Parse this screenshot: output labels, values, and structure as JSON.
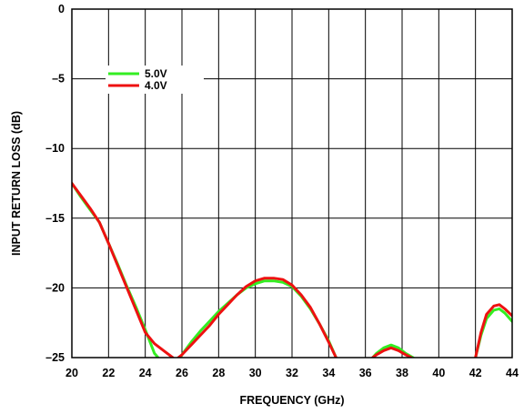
{
  "chart_data": {
    "type": "line",
    "title": "",
    "xlabel": "FREQUENCY (GHz)",
    "ylabel": "INPUT RETURN LOSS (dB)",
    "xlim": [
      20,
      44
    ],
    "ylim": [
      -25,
      0
    ],
    "xticks": [
      20,
      22,
      24,
      26,
      28,
      30,
      32,
      34,
      36,
      38,
      40,
      42,
      44
    ],
    "yticks": [
      0,
      -5,
      -10,
      -15,
      -20,
      -25
    ],
    "ytick_labels": [
      "0",
      "–5",
      "–10",
      "–15",
      "–20",
      "–25"
    ],
    "grid": true,
    "legend_position": "upper-left",
    "series": [
      {
        "name": "5.0V",
        "color": "#33ee22",
        "segments": [
          [
            [
              20,
              -12.5
            ],
            [
              20.5,
              -13.5
            ],
            [
              21,
              -14.4
            ],
            [
              21.5,
              -15.3
            ],
            [
              22,
              -16.8
            ],
            [
              22.5,
              -18.3
            ],
            [
              23,
              -19.9
            ],
            [
              23.5,
              -21.4
            ],
            [
              24,
              -23.0
            ],
            [
              24.5,
              -24.7
            ],
            [
              24.7,
              -25.0
            ]
          ],
          [
            [
              25.9,
              -25.0
            ],
            [
              26,
              -24.8
            ],
            [
              26.5,
              -23.9
            ],
            [
              27,
              -23.1
            ],
            [
              27.5,
              -22.4
            ],
            [
              28,
              -21.7
            ],
            [
              28.5,
              -21.1
            ],
            [
              29,
              -20.5
            ],
            [
              29.5,
              -20.0
            ],
            [
              30,
              -19.7
            ],
            [
              30.5,
              -19.5
            ],
            [
              31,
              -19.5
            ],
            [
              31.5,
              -19.6
            ],
            [
              32,
              -19.9
            ],
            [
              32.5,
              -20.6
            ],
            [
              33,
              -21.5
            ],
            [
              33.5,
              -22.6
            ],
            [
              34,
              -23.8
            ],
            [
              34.4,
              -25.0
            ]
          ],
          [
            [
              36.4,
              -25.0
            ],
            [
              36.6,
              -24.7
            ],
            [
              37,
              -24.3
            ],
            [
              37.4,
              -24.1
            ],
            [
              37.8,
              -24.3
            ],
            [
              38.2,
              -24.7
            ],
            [
              38.6,
              -25.0
            ]
          ],
          [
            [
              42.0,
              -25.0
            ],
            [
              42.3,
              -23.4
            ],
            [
              42.6,
              -22.2
            ],
            [
              43.0,
              -21.6
            ],
            [
              43.3,
              -21.5
            ],
            [
              43.6,
              -21.8
            ],
            [
              44,
              -22.4
            ]
          ]
        ]
      },
      {
        "name": "4.0V",
        "color": "#ee1111",
        "segments": [
          [
            [
              20,
              -12.5
            ],
            [
              20.5,
              -13.4
            ],
            [
              21,
              -14.3
            ],
            [
              21.5,
              -15.3
            ],
            [
              22,
              -16.8
            ],
            [
              22.5,
              -18.4
            ],
            [
              23,
              -20.0
            ],
            [
              23.5,
              -21.6
            ],
            [
              24,
              -23.2
            ],
            [
              24.5,
              -24.0
            ],
            [
              25,
              -24.5
            ],
            [
              25.5,
              -25.0
            ]
          ],
          [
            [
              25.8,
              -25.0
            ],
            [
              26,
              -24.8
            ],
            [
              26.5,
              -24.1
            ],
            [
              27,
              -23.4
            ],
            [
              27.5,
              -22.7
            ],
            [
              28,
              -21.9
            ],
            [
              28.5,
              -21.2
            ],
            [
              29,
              -20.5
            ],
            [
              29.5,
              -19.9
            ],
            [
              30,
              -19.5
            ],
            [
              30.5,
              -19.3
            ],
            [
              31,
              -19.3
            ],
            [
              31.5,
              -19.4
            ],
            [
              32,
              -19.8
            ],
            [
              32.5,
              -20.5
            ],
            [
              33,
              -21.4
            ],
            [
              33.5,
              -22.6
            ],
            [
              34,
              -23.9
            ],
            [
              34.4,
              -25.0
            ]
          ],
          [
            [
              36.4,
              -25.0
            ],
            [
              36.6,
              -24.8
            ],
            [
              37,
              -24.5
            ],
            [
              37.4,
              -24.3
            ],
            [
              37.8,
              -24.5
            ],
            [
              38.2,
              -24.8
            ],
            [
              38.5,
              -25.0
            ]
          ],
          [
            [
              42.0,
              -25.0
            ],
            [
              42.3,
              -23.2
            ],
            [
              42.6,
              -21.9
            ],
            [
              43.0,
              -21.3
            ],
            [
              43.3,
              -21.2
            ],
            [
              43.6,
              -21.5
            ],
            [
              44,
              -22.0
            ]
          ]
        ]
      }
    ]
  }
}
